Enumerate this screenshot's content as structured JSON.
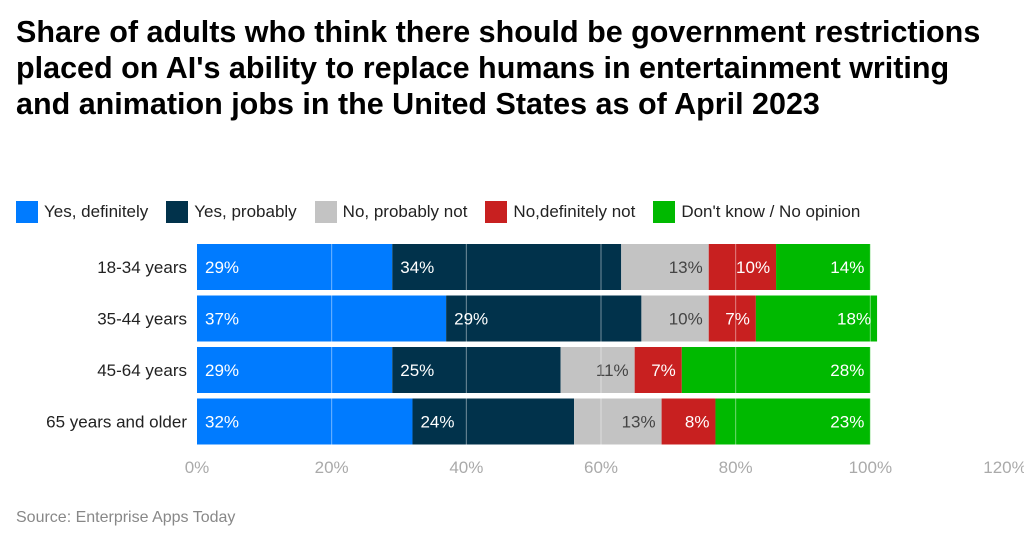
{
  "chart_data": {
    "type": "bar",
    "orientation": "horizontal",
    "stacked": true,
    "title": "Share of adults who think there should be government restrictions placed on AI's ability to replace humans in entertainment writing and animation jobs in the United States as of April 2023",
    "categories": [
      "18-34 years",
      "35-44 years",
      "45-64 years",
      "65 years and older"
    ],
    "series": [
      {
        "name": "Yes, definitely",
        "color": "#007bff",
        "values": [
          29,
          37,
          29,
          32
        ]
      },
      {
        "name": "Yes, probably",
        "color": "#01324b",
        "values": [
          34,
          29,
          25,
          24
        ]
      },
      {
        "name": "No, probably not",
        "color": "#c3c3c3",
        "values": [
          13,
          10,
          11,
          13
        ]
      },
      {
        "name": "No,definitely not",
        "color": "#c82020",
        "values": [
          10,
          7,
          7,
          8
        ]
      },
      {
        "name": "Don't know / No opinion",
        "color": "#00b900",
        "values": [
          14,
          18,
          28,
          23
        ]
      }
    ],
    "xlim": [
      0,
      120
    ],
    "xticks": [
      "0%",
      "20%",
      "40%",
      "60%",
      "80%",
      "100%",
      "120%"
    ],
    "grid": true,
    "legend_position": "top-left",
    "source": "Source: Enterprise Apps Today"
  }
}
